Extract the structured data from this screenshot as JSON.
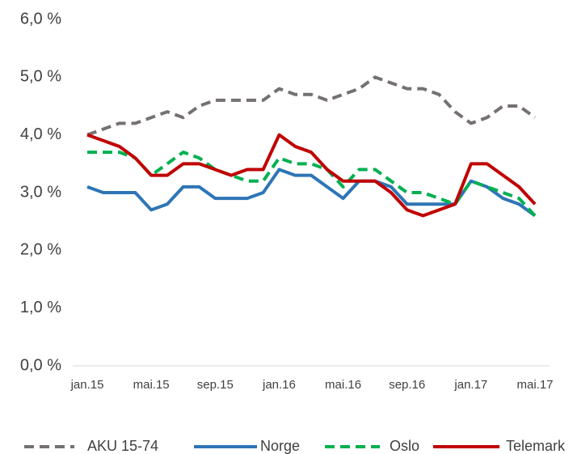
{
  "chart_data": {
    "type": "line",
    "categories": [
      "jan.15",
      null,
      null,
      null,
      "mai.15",
      null,
      null,
      null,
      "sep.15",
      null,
      null,
      null,
      "jan.16",
      null,
      null,
      null,
      "mai.16",
      null,
      null,
      null,
      "sep.16",
      null,
      null,
      null,
      "jan.17",
      null,
      null,
      null,
      "mai.17"
    ],
    "series": [
      {
        "name": "AKU 15-74",
        "color": "#767171",
        "dashed": true,
        "values": [
          4.0,
          4.1,
          4.2,
          4.2,
          4.3,
          4.4,
          4.3,
          4.5,
          4.6,
          4.6,
          4.6,
          4.6,
          4.8,
          4.7,
          4.7,
          4.6,
          4.7,
          4.8,
          5.0,
          4.9,
          4.8,
          4.8,
          4.7,
          4.4,
          4.2,
          4.3,
          4.5,
          4.5,
          4.3
        ]
      },
      {
        "name": "Norge",
        "color": "#2e75b6",
        "dashed": false,
        "values": [
          3.1,
          3.0,
          3.0,
          3.0,
          2.7,
          2.8,
          3.1,
          3.1,
          2.9,
          2.9,
          2.9,
          3.0,
          3.4,
          3.3,
          3.3,
          3.1,
          2.9,
          3.2,
          3.2,
          3.1,
          2.8,
          2.8,
          2.8,
          2.8,
          3.2,
          3.1,
          2.9,
          2.8,
          2.6
        ]
      },
      {
        "name": "Oslo",
        "color": "#00b050",
        "dashed": true,
        "values": [
          3.7,
          3.7,
          3.7,
          3.6,
          3.3,
          3.5,
          3.7,
          3.6,
          3.4,
          3.3,
          3.2,
          3.2,
          3.6,
          3.5,
          3.5,
          3.4,
          3.1,
          3.4,
          3.4,
          3.2,
          3.0,
          3.0,
          2.9,
          2.8,
          3.2,
          3.1,
          3.0,
          2.9,
          2.6
        ]
      },
      {
        "name": "Telemark",
        "color": "#c00000",
        "dashed": false,
        "values": [
          4.0,
          3.9,
          3.8,
          3.6,
          3.3,
          3.3,
          3.5,
          3.5,
          3.4,
          3.3,
          3.4,
          3.4,
          4.0,
          3.8,
          3.7,
          3.4,
          3.2,
          3.2,
          3.2,
          3.0,
          2.7,
          2.6,
          2.7,
          2.8,
          3.5,
          3.5,
          3.3,
          3.1,
          2.8
        ]
      }
    ],
    "ylim": [
      0,
      6
    ],
    "yticks": [
      {
        "value": 0,
        "label": "0,0 %"
      },
      {
        "value": 1,
        "label": "1,0 %"
      },
      {
        "value": 2,
        "label": "2,0 %"
      },
      {
        "value": 3,
        "label": "3,0 %"
      },
      {
        "value": 4,
        "label": "4,0 %"
      },
      {
        "value": 5,
        "label": "5,0 %"
      },
      {
        "value": 6,
        "label": "6,0 %"
      }
    ],
    "grid": false,
    "legend": "bottom"
  }
}
